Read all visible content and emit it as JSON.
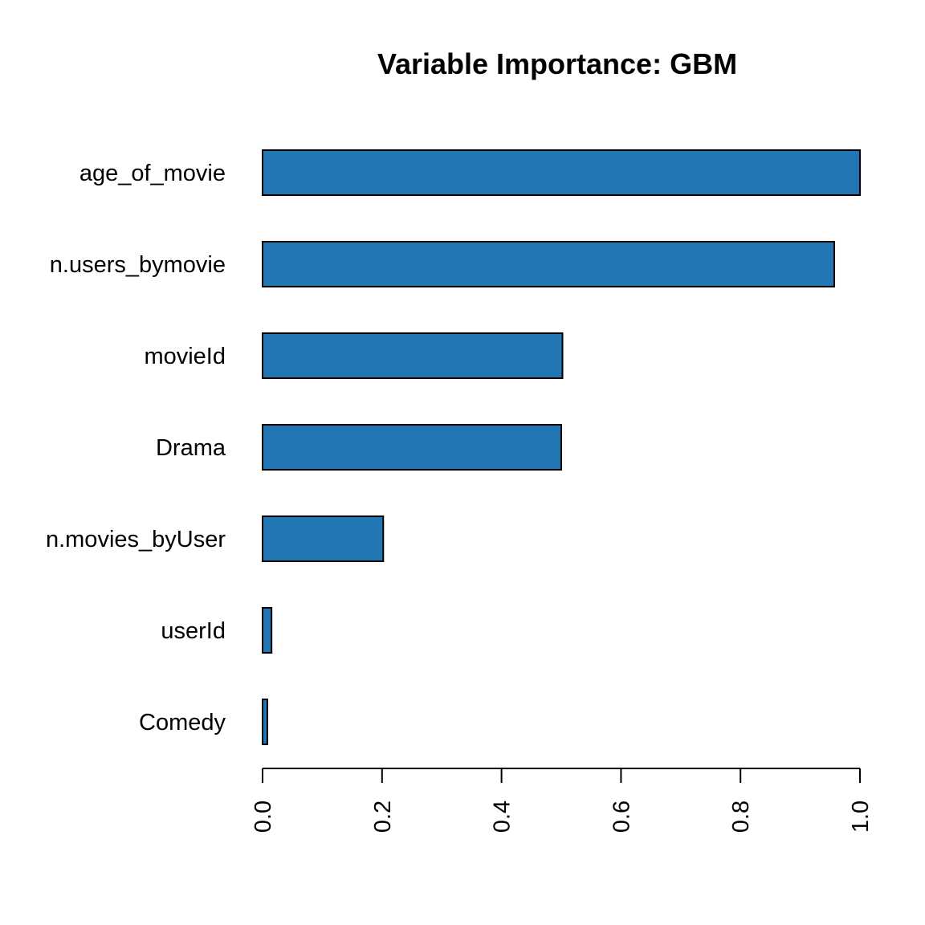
{
  "chart_data": {
    "type": "bar",
    "orientation": "horizontal",
    "title": "Variable Importance: GBM",
    "xlabel": "",
    "ylabel": "",
    "categories": [
      "age_of_movie",
      "n.users_bymovie",
      "movieId",
      "Drama",
      "n.movies_byUser",
      "userId",
      "Comedy"
    ],
    "values": [
      1.0,
      0.957,
      0.502,
      0.5,
      0.202,
      0.015,
      0.008
    ],
    "xlim": [
      0,
      1
    ],
    "ticks": [
      0.0,
      0.2,
      0.4,
      0.6,
      0.8,
      1.0
    ],
    "tick_labels": [
      "0.0",
      "0.2",
      "0.4",
      "0.6",
      "0.8",
      "1.0"
    ],
    "bar_color": "#2176B3",
    "grid": false,
    "legend": "none"
  }
}
